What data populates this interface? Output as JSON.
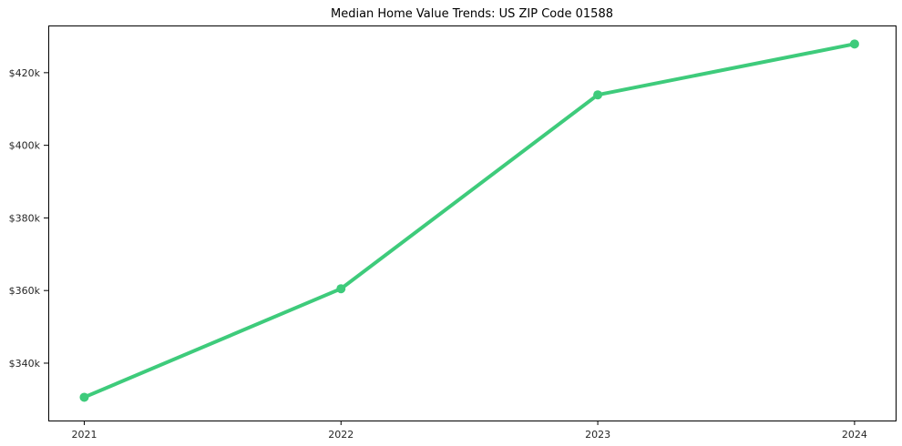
{
  "chart": {
    "background_color": "#ffffff",
    "line_color": "#3ecb7b",
    "axis_color": "#000000",
    "text_color": "#262626"
  },
  "chart_data": {
    "type": "line",
    "title": "Median Home Value Trends: US ZIP Code 01588",
    "x": [
      2021,
      2022,
      2023,
      2024
    ],
    "x_tick_labels": [
      "2021",
      "2022",
      "2023",
      "2024"
    ],
    "values": [
      330600,
      360500,
      413900,
      427900
    ],
    "y_ticks": [
      340000,
      360000,
      380000,
      400000,
      420000
    ],
    "y_tick_labels": [
      "$340k",
      "$360k",
      "$380k",
      "$400k",
      "$420k"
    ],
    "xlim": [
      2020.86,
      2024.16
    ],
    "ylim": [
      324200,
      433000
    ],
    "xlabel": "",
    "ylabel": "",
    "grid": false,
    "legend": false,
    "marker": "circle"
  }
}
